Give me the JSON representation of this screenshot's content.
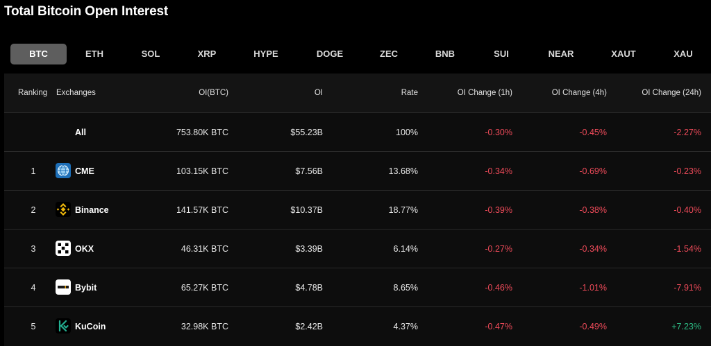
{
  "title": "Total Bitcoin Open Interest",
  "tabs": [
    "BTC",
    "ETH",
    "SOL",
    "XRP",
    "HYPE",
    "DOGE",
    "ZEC",
    "BNB",
    "SUI",
    "NEAR",
    "XAUT",
    "XAU"
  ],
  "active_tab": "BTC",
  "columns": {
    "ranking": "Ranking",
    "exchanges": "Exchanges",
    "oi_btc": "OI(BTC)",
    "oi": "OI",
    "rate": "Rate",
    "change_1h": "OI Change (1h)",
    "change_4h": "OI Change (4h)",
    "change_24h": "OI Change (24h)"
  },
  "rows": [
    {
      "rank": "",
      "exchange": "All",
      "logo": "",
      "oi_btc": "753.80K BTC",
      "oi": "$55.23B",
      "rate": "100%",
      "change_1h": "-0.30%",
      "change_4h": "-0.45%",
      "change_24h": "-2.27%"
    },
    {
      "rank": "1",
      "exchange": "CME",
      "logo": "cme-logo-icon",
      "oi_btc": "103.15K BTC",
      "oi": "$7.56B",
      "rate": "13.68%",
      "change_1h": "-0.34%",
      "change_4h": "-0.69%",
      "change_24h": "-0.23%"
    },
    {
      "rank": "2",
      "exchange": "Binance",
      "logo": "binance-logo-icon",
      "oi_btc": "141.57K BTC",
      "oi": "$10.37B",
      "rate": "18.77%",
      "change_1h": "-0.39%",
      "change_4h": "-0.38%",
      "change_24h": "-0.40%"
    },
    {
      "rank": "3",
      "exchange": "OKX",
      "logo": "okx-logo-icon",
      "oi_btc": "46.31K BTC",
      "oi": "$3.39B",
      "rate": "6.14%",
      "change_1h": "-0.27%",
      "change_4h": "-0.34%",
      "change_24h": "-1.54%"
    },
    {
      "rank": "4",
      "exchange": "Bybit",
      "logo": "bybit-logo-icon",
      "oi_btc": "65.27K BTC",
      "oi": "$4.78B",
      "rate": "8.65%",
      "change_1h": "-0.46%",
      "change_4h": "-1.01%",
      "change_24h": "-7.91%"
    },
    {
      "rank": "5",
      "exchange": "KuCoin",
      "logo": "kucoin-logo-icon",
      "oi_btc": "32.98K BTC",
      "oi": "$2.42B",
      "rate": "4.37%",
      "change_1h": "-0.47%",
      "change_4h": "-0.49%",
      "change_24h": "+7.23%"
    }
  ],
  "colors": {
    "negative": "#f04b5a",
    "positive": "#2ebd85",
    "active_tab_bg": "#5e5e5e"
  }
}
